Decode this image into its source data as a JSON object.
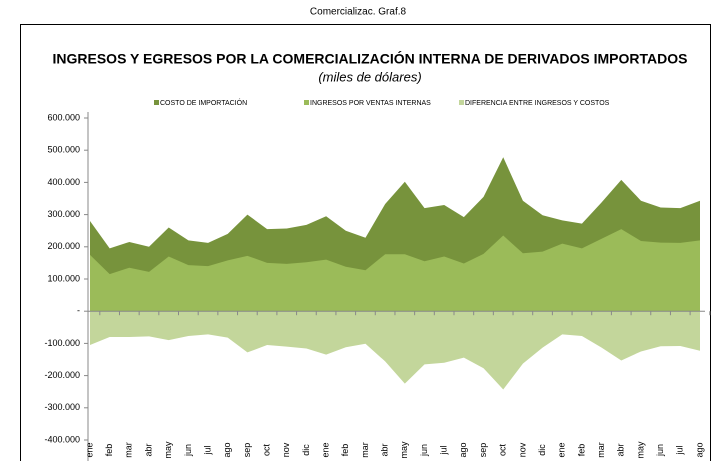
{
  "header": "Comercializac. Graf.8",
  "chart_data": {
    "type": "area",
    "title": "INGRESOS Y EGRESOS POR LA COMERCIALIZACIÓN INTERNA DE DERIVADOS IMPORTADOS",
    "subtitle": "(miles de dólares)",
    "categories": [
      "ene",
      "feb",
      "mar",
      "abr",
      "may",
      "jun",
      "jul",
      "ago",
      "sep",
      "oct",
      "nov",
      "dic",
      "ene",
      "feb",
      "mar",
      "abr",
      "may",
      "jun",
      "jul",
      "ago",
      "sep",
      "oct",
      "nov",
      "dic",
      "ene",
      "feb",
      "mar",
      "abr",
      "may",
      "jun",
      "jul",
      "ago"
    ],
    "series": [
      {
        "name": "COSTO DE IMPORTACIÓN",
        "color": "#77933c",
        "values": [
          280000,
          195000,
          215000,
          200000,
          260000,
          220000,
          212000,
          240000,
          300000,
          255000,
          257000,
          268000,
          295000,
          250000,
          228000,
          333000,
          402000,
          320000,
          330000,
          292000,
          355000,
          478000,
          343000,
          298000,
          282000,
          272000,
          338000,
          408000,
          343000,
          322000,
          320000,
          343000
        ]
      },
      {
        "name": "INGRESOS POR VENTAS INTERNAS",
        "color": "#9bbb59",
        "values": [
          175000,
          115000,
          135000,
          122000,
          170000,
          143000,
          140000,
          158000,
          172000,
          150000,
          147000,
          152000,
          160000,
          138000,
          127000,
          177000,
          177000,
          155000,
          170000,
          148000,
          178000,
          235000,
          180000,
          185000,
          210000,
          195000,
          225000,
          255000,
          218000,
          213000,
          212000,
          220000
        ]
      },
      {
        "name": "DIFERENCIA ENTRE INGRESOS Y COSTOS",
        "color": "#c3d69b",
        "values": [
          -105000,
          -80000,
          -80000,
          -78000,
          -90000,
          -77000,
          -72000,
          -82000,
          -128000,
          -105000,
          -110000,
          -116000,
          -135000,
          -112000,
          -101000,
          -156000,
          -225000,
          -165000,
          -160000,
          -144000,
          -177000,
          -243000,
          -163000,
          -113000,
          -72000,
          -77000,
          -113000,
          -153000,
          -125000,
          -109000,
          -108000,
          -123000
        ]
      }
    ],
    "ylim": [
      -400000,
      600000
    ],
    "yticks": [
      {
        "value": -400000,
        "label": "-400.000"
      },
      {
        "value": -300000,
        "label": "-300.000"
      },
      {
        "value": -200000,
        "label": "-200.000"
      },
      {
        "value": -100000,
        "label": "-100.000"
      },
      {
        "value": 0,
        "label": "-"
      },
      {
        "value": 100000,
        "label": "100.000"
      },
      {
        "value": 200000,
        "label": "200.000"
      },
      {
        "value": 300000,
        "label": "300.000"
      },
      {
        "value": 400000,
        "label": "400.000"
      },
      {
        "value": 500000,
        "label": "500.000"
      },
      {
        "value": 600000,
        "label": "600.000"
      }
    ],
    "legend": "top"
  }
}
